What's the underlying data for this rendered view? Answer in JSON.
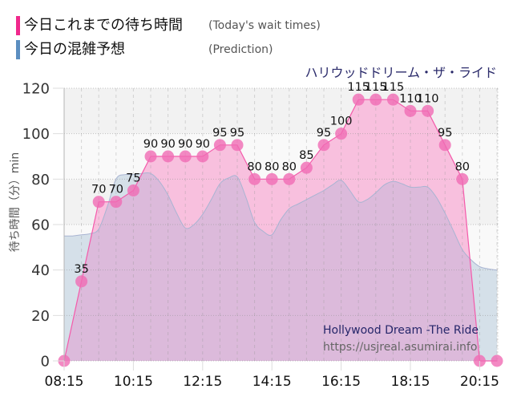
{
  "legend": {
    "items": [
      {
        "label": "今日これまでの待ち時間",
        "sublabel": "(Today's wait times)",
        "color": "#f0288c"
      },
      {
        "label": "今日の混雑予想",
        "sublabel": "(Prediction)",
        "color": "#5b8ec0"
      }
    ]
  },
  "watermark": {
    "line1": "Hollywood Dream -The Ride",
    "line2": "https://usjreal.asumirai.info"
  },
  "chart_data": {
    "type": "area",
    "title": "ハリウッドドリーム・ザ・ライド",
    "xlabel": "",
    "ylabel": "待ち時間（分）min",
    "ylim": [
      0,
      120
    ],
    "yticks": [
      0,
      20,
      40,
      60,
      80,
      100,
      120
    ],
    "xticks": [
      "08:15",
      "10:15",
      "12:15",
      "14:15",
      "16:15",
      "18:15",
      "20:15"
    ],
    "x_range": [
      "08:15",
      "20:45"
    ],
    "grid": true,
    "legend_position": "top-left",
    "colors": {
      "wait_line": "#f45aaa",
      "wait_fill": "#f8c0de",
      "wait_dot": "#f06bb4",
      "prediction_line": "#a9b4d2",
      "prediction_fill": "#d5e0e9",
      "overlap_fill": "#dcbadb",
      "band_light": "#f9f9f9",
      "band_dark": "#f2f2f2"
    },
    "series": [
      {
        "name": "今日これまでの待ち時間 (Today's wait times)",
        "style": "linear-with-markers-and-labels",
        "x": [
          "08:15",
          "08:45",
          "09:15",
          "09:45",
          "10:15",
          "10:45",
          "11:15",
          "11:45",
          "12:15",
          "12:45",
          "13:15",
          "13:45",
          "14:15",
          "14:45",
          "15:15",
          "15:45",
          "16:15",
          "16:45",
          "17:15",
          "17:45",
          "18:15",
          "18:45",
          "19:15",
          "19:45",
          "20:15",
          "20:45"
        ],
        "values": [
          0,
          35,
          70,
          70,
          75,
          90,
          90,
          90,
          90,
          95,
          95,
          80,
          80,
          80,
          85,
          95,
          100,
          115,
          115,
          115,
          110,
          110,
          95,
          80,
          0,
          0
        ]
      },
      {
        "name": "今日の混雑予想 (Prediction)",
        "style": "smooth-area",
        "x": [
          "08:15",
          "08:30",
          "08:45",
          "09:00",
          "09:15",
          "09:30",
          "09:45",
          "10:00",
          "10:15",
          "10:30",
          "10:45",
          "11:00",
          "11:15",
          "11:30",
          "11:45",
          "12:00",
          "12:15",
          "12:30",
          "12:45",
          "13:00",
          "13:15",
          "13:30",
          "13:45",
          "14:00",
          "14:15",
          "14:30",
          "14:45",
          "15:00",
          "15:15",
          "15:30",
          "15:45",
          "16:00",
          "16:15",
          "16:30",
          "16:45",
          "17:00",
          "17:15",
          "17:30",
          "17:45",
          "18:00",
          "18:15",
          "18:30",
          "18:45",
          "19:00",
          "19:15",
          "19:30",
          "19:45",
          "20:00",
          "20:15",
          "20:30",
          "20:45"
        ],
        "values": [
          55,
          55,
          55.5,
          56,
          58,
          68,
          80,
          82,
          82,
          82.5,
          82.5,
          79,
          73,
          65,
          58.5,
          60,
          64.5,
          71,
          78,
          80.5,
          81,
          72,
          61,
          57,
          55.5,
          62,
          67,
          69,
          71,
          73,
          75,
          77.5,
          79.5,
          75,
          70,
          71,
          74,
          77.5,
          79,
          78,
          76.5,
          76.5,
          76.5,
          72,
          65,
          57,
          49,
          44.5,
          41.5,
          40.5,
          40
        ]
      }
    ]
  }
}
